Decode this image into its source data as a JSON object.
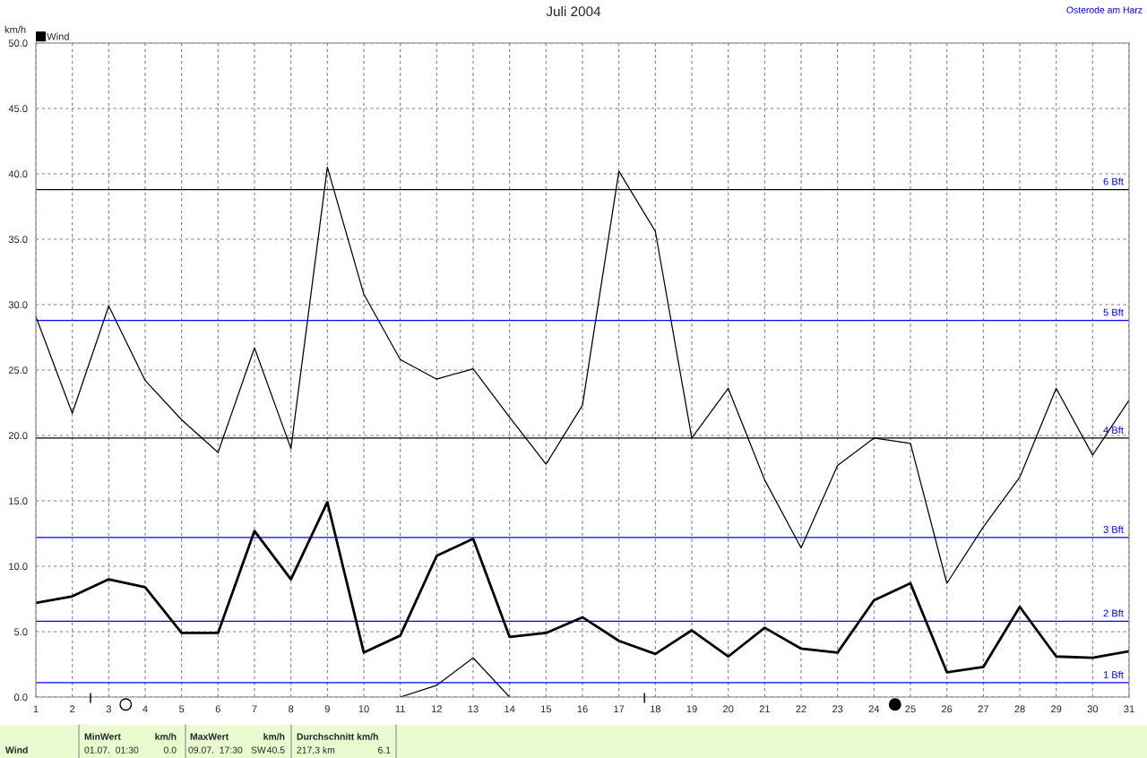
{
  "chart_data": {
    "type": "line",
    "title": "Juli 2004",
    "ylabel": "km/h",
    "x": [
      1,
      2,
      3,
      4,
      5,
      6,
      7,
      8,
      9,
      10,
      11,
      12,
      13,
      14,
      15,
      16,
      17,
      18,
      19,
      20,
      21,
      22,
      23,
      24,
      25,
      26,
      27,
      28,
      29,
      30,
      31
    ],
    "series": [
      {
        "color": "#000000",
        "values": [
          29.1,
          21.7,
          29.9,
          24.2,
          21.2,
          18.7,
          26.7,
          19.0,
          40.5,
          30.8,
          25.8,
          24.3,
          25.1,
          21.4,
          17.8,
          22.3,
          40.2,
          35.6,
          19.8,
          23.6,
          16.6,
          11.4,
          17.7,
          19.8,
          19.4,
          8.7,
          13.0,
          16.8,
          23.6,
          18.5,
          22.7
        ]
      },
      {
        "name": "Wind",
        "color": "#000000",
        "values": [
          7.2,
          7.7,
          9.0,
          8.4,
          4.9,
          4.9,
          12.7,
          9.0,
          14.9,
          3.4,
          4.7,
          10.8,
          12.1,
          4.6,
          4.9,
          6.1,
          4.3,
          3.3,
          5.1,
          3.1,
          5.3,
          3.7,
          3.4,
          7.4,
          8.7,
          1.9,
          2.3,
          6.9,
          3.1,
          3.0,
          3.5
        ]
      },
      {
        "color": "#000000",
        "values": [
          null,
          null,
          null,
          null,
          null,
          null,
          null,
          null,
          null,
          null,
          0,
          0.9,
          3.0,
          0,
          null,
          null,
          null,
          null,
          null,
          null,
          null,
          null,
          null,
          null,
          null,
          null,
          null,
          null,
          null,
          null,
          null
        ]
      }
    ],
    "xlim": [
      1,
      31
    ],
    "xticks": [
      1,
      2,
      3,
      4,
      5,
      6,
      7,
      8,
      9,
      10,
      11,
      12,
      13,
      14,
      15,
      16,
      17,
      18,
      19,
      20,
      21,
      22,
      23,
      24,
      25,
      26,
      27,
      28,
      29,
      30,
      31
    ],
    "ylim": [
      0,
      50
    ],
    "yticks": [
      {
        "value": 0,
        "label": "0.0"
      },
      {
        "value": 5,
        "label": "5.0"
      },
      {
        "value": 10,
        "label": "10.0"
      },
      {
        "value": 15,
        "label": "15.0"
      },
      {
        "value": 20,
        "label": "20.0"
      },
      {
        "value": 25,
        "label": "25.0"
      },
      {
        "value": 30,
        "label": "30.0"
      },
      {
        "value": 35,
        "label": "35.0"
      },
      {
        "value": 40,
        "label": "40.0"
      },
      {
        "value": 45,
        "label": "45.0"
      },
      {
        "value": 50,
        "label": "50.0"
      }
    ],
    "ref_lines": [
      {
        "axis": "y",
        "value": 1.1,
        "label": "1 Bft",
        "color": "#0000ff"
      },
      {
        "axis": "y",
        "value": 5.8,
        "label": "2 Bft",
        "color": "#0000ff"
      },
      {
        "axis": "y",
        "value": 12.2,
        "label": "3 Bft",
        "color": "#0000ff"
      },
      {
        "axis": "y",
        "value": 19.8,
        "label": "4 Bft",
        "color": "#000000"
      },
      {
        "axis": "y",
        "value": 28.8,
        "label": "5 Bft",
        "color": "#0000ff"
      },
      {
        "axis": "y",
        "value": 38.8,
        "label": "6 Bft",
        "color": "#000000"
      }
    ],
    "grid": true,
    "legend": "top left",
    "annotations": [
      "Osterode am Harz",
      "Wind",
      "MinWert",
      "km/h",
      "01.07.  01:30",
      "0.0",
      "MaxWert",
      "km/h",
      "09.07.  17:30",
      "SW",
      "40.5",
      "Durchschnitt km/h",
      "217,3 km",
      "6.1"
    ]
  }
}
